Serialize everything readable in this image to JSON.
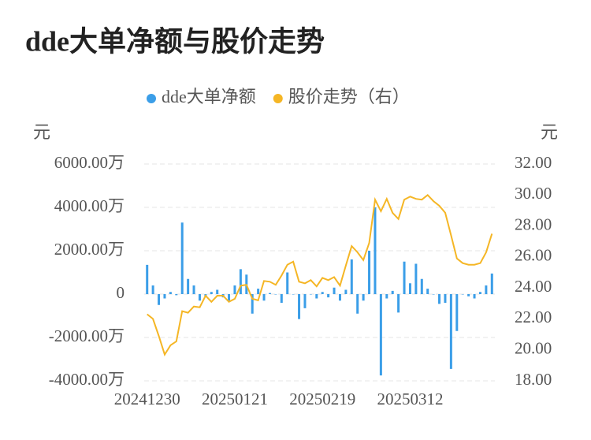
{
  "chart_data": {
    "type": "bar-line",
    "title": "dde大单净额与股价走势",
    "y_label": "元",
    "y2_label": "元",
    "categories": [
      "20241230",
      null,
      null,
      null,
      null,
      null,
      null,
      null,
      null,
      null,
      null,
      null,
      null,
      null,
      null,
      "20250121",
      null,
      null,
      null,
      null,
      null,
      null,
      null,
      null,
      null,
      null,
      null,
      null,
      null,
      null,
      "20250219",
      null,
      null,
      null,
      null,
      null,
      null,
      null,
      null,
      null,
      null,
      null,
      null,
      null,
      null,
      "20250312",
      null,
      null,
      null,
      null,
      null,
      null,
      null,
      null,
      null,
      null,
      null,
      null,
      null,
      null
    ],
    "series": [
      {
        "name": "dde大单净额",
        "type": "bar",
        "color": "#3b9ee8",
        "values": [
          1350,
          400,
          -500,
          -200,
          100,
          -50,
          3300,
          700,
          400,
          -300,
          -100,
          100,
          200,
          -150,
          -300,
          400,
          1150,
          900,
          -900,
          250,
          -300,
          50,
          0,
          -400,
          1000,
          0,
          -1150,
          -650,
          0,
          -200,
          100,
          -150,
          300,
          -300,
          200,
          1600,
          -900,
          -300,
          2000,
          4000,
          -3750,
          -200,
          150,
          -850,
          1500,
          500,
          1400,
          700,
          250,
          0,
          -450,
          -400,
          -3450,
          -1700,
          0,
          -100,
          -200,
          100,
          400,
          950
        ]
      },
      {
        "name": "股价走势（右）",
        "type": "line",
        "axis": "y2",
        "color": "#f5b625",
        "values": [
          22.3,
          22.0,
          20.9,
          19.7,
          20.3,
          20.55,
          22.5,
          22.4,
          22.8,
          22.75,
          23.5,
          23.1,
          23.5,
          23.5,
          23.1,
          23.3,
          24.15,
          24.2,
          23.3,
          23.2,
          24.45,
          24.4,
          24.2,
          24.8,
          25.5,
          25.7,
          24.4,
          24.3,
          24.5,
          24.1,
          24.65,
          24.5,
          24.7,
          24.15,
          25.45,
          26.7,
          26.3,
          25.8,
          26.9,
          29.7,
          28.95,
          29.75,
          28.85,
          28.45,
          29.7,
          29.9,
          29.75,
          29.7,
          30.0,
          29.6,
          29.3,
          28.85,
          27.4,
          25.9,
          25.6,
          25.5,
          25.5,
          25.6,
          26.3,
          27.5
        ]
      }
    ],
    "ylim": [
      -4000,
      6000
    ],
    "yticks": [
      {
        "value": -4000,
        "label": "-4000.00万"
      },
      {
        "value": -2000,
        "label": "-2000.00万"
      },
      0,
      {
        "value": 2000,
        "label": "2000.00万"
      },
      {
        "value": 4000,
        "label": "4000.00万"
      },
      {
        "value": 6000,
        "label": "6000.00万"
      }
    ],
    "y2lim": [
      18,
      32
    ],
    "y2ticks": [
      {
        "value": 18,
        "label": "18.00"
      },
      {
        "value": 20,
        "label": "20.00"
      },
      {
        "value": 22,
        "label": "22.00"
      },
      {
        "value": 24,
        "label": "24.00"
      },
      {
        "value": 26,
        "label": "26.00"
      },
      {
        "value": 28,
        "label": "28.00"
      },
      {
        "value": 30,
        "label": "30.00"
      },
      {
        "value": 32,
        "label": "32.00"
      }
    ],
    "grid": true,
    "legend": "top"
  }
}
